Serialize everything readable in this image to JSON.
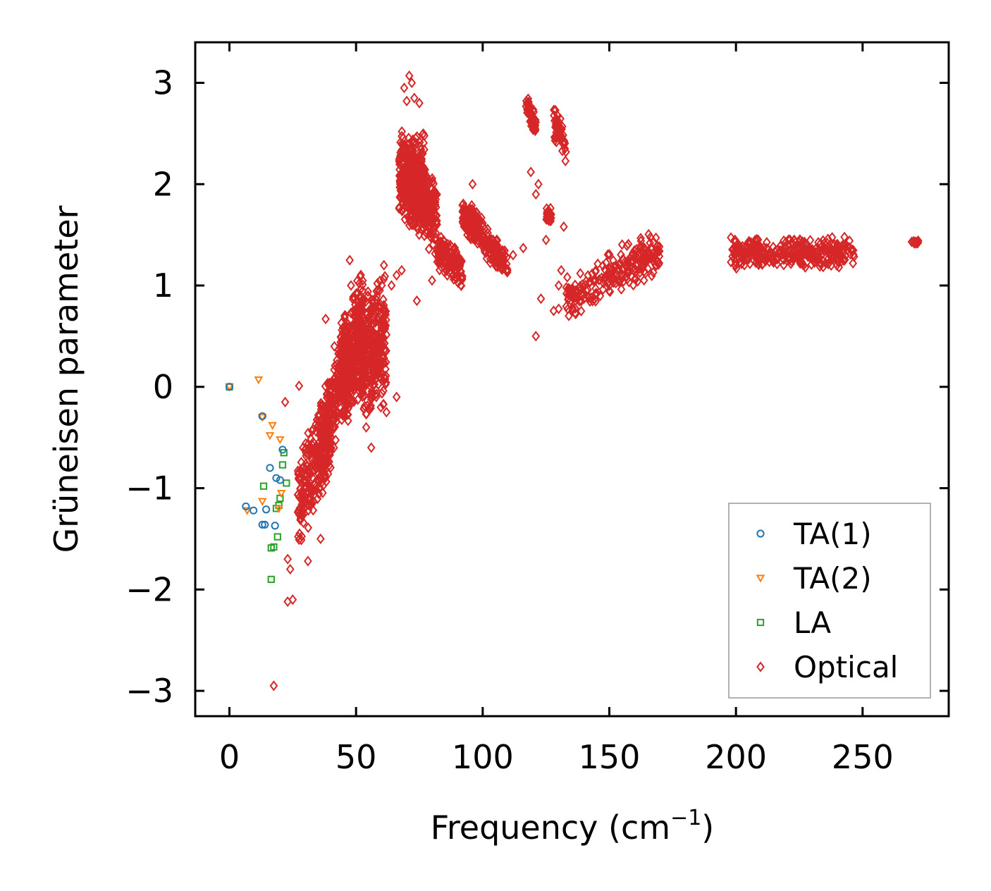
{
  "chart_data": {
    "type": "scatter",
    "title": "",
    "xlabel": "Frequency (cm",
    "xlabel_superscript": "−1",
    "xlabel_suffix": ")",
    "ylabel": "Grüneisen parameter",
    "xlim": [
      -13.5,
      284
    ],
    "ylim": [
      -3.25,
      3.4
    ],
    "x_ticks": [
      0,
      50,
      100,
      150,
      200,
      250
    ],
    "x_tick_labels": [
      "0",
      "50",
      "100",
      "150",
      "200",
      "250"
    ],
    "y_ticks": [
      -3,
      -2,
      -1,
      0,
      1,
      2,
      3
    ],
    "y_tick_labels": [
      "−3",
      "−2",
      "−1",
      "0",
      "1",
      "2",
      "3"
    ],
    "grid": false,
    "legend_position": "lower-right",
    "series": [
      {
        "name": "TA(1)",
        "marker": "circle",
        "color": "#1f77b4",
        "points": [
          [
            0,
            0
          ],
          [
            13,
            -0.29
          ],
          [
            16,
            -0.8
          ],
          [
            18.5,
            -0.9
          ],
          [
            20,
            -0.92
          ],
          [
            21,
            -0.62
          ],
          [
            6.5,
            -1.18
          ],
          [
            9.5,
            -1.22
          ],
          [
            13,
            -1.36
          ],
          [
            14,
            -1.36
          ],
          [
            14.5,
            -1.21
          ],
          [
            18,
            -1.37
          ]
        ]
      },
      {
        "name": "TA(2)",
        "marker": "triangle-down",
        "color": "#ff7f0e",
        "points": [
          [
            0,
            0
          ],
          [
            11.5,
            0.07
          ],
          [
            13,
            -0.3
          ],
          [
            16,
            -0.48
          ],
          [
            17,
            -0.38
          ],
          [
            20,
            -0.52
          ],
          [
            20.5,
            -1.05
          ],
          [
            7,
            -1.22
          ],
          [
            13,
            -1.13
          ],
          [
            19.5,
            -1.2
          ]
        ]
      },
      {
        "name": "LA",
        "marker": "square",
        "color": "#2ca02c",
        "points": [
          [
            0,
            0
          ],
          [
            13.5,
            -0.98
          ],
          [
            18.5,
            -1.2
          ],
          [
            19.5,
            -1.17
          ],
          [
            20,
            -1.1
          ],
          [
            21,
            -0.77
          ],
          [
            22.5,
            -0.95
          ],
          [
            21.5,
            -0.65
          ],
          [
            16.5,
            -1.59
          ],
          [
            17.5,
            -1.58
          ],
          [
            19,
            -1.48
          ],
          [
            16.5,
            -1.9
          ]
        ]
      },
      {
        "name": "Optical",
        "marker": "diamond",
        "color": "#d62728",
        "points": [],
        "clusters": [
          {
            "x": [
              27,
              40
            ],
            "y": [
              -1.25,
              -0.3
            ],
            "n": 260,
            "trend": 0.06
          },
          {
            "x": [
              36,
              46
            ],
            "y": [
              -0.7,
              0.4
            ],
            "n": 220,
            "trend": 0.1
          },
          {
            "x": [
              44,
              53
            ],
            "y": [
              -0.3,
              0.95
            ],
            "n": 380,
            "trend": 0.06
          },
          {
            "x": [
              52,
              62
            ],
            "y": [
              -0.3,
              1.05
            ],
            "n": 320,
            "trend": 0.02
          },
          {
            "x": [
              67,
              77
            ],
            "y": [
              1.55,
              2.55
            ],
            "n": 360,
            "trend": 0.0
          },
          {
            "x": [
              72,
              82
            ],
            "y": [
              1.4,
              2.2
            ],
            "n": 240,
            "trend": -0.03
          },
          {
            "x": [
              82,
              92
            ],
            "y": [
              1.05,
              1.45
            ],
            "n": 130,
            "trend": -0.02
          },
          {
            "x": [
              92,
              100
            ],
            "y": [
              1.4,
              1.8
            ],
            "n": 140,
            "trend": -0.02
          },
          {
            "x": [
              100,
              110
            ],
            "y": [
              1.15,
              1.5
            ],
            "n": 100,
            "trend": -0.03
          },
          {
            "x": [
              117,
              121
            ],
            "y": [
              2.55,
              2.8
            ],
            "n": 50,
            "trend": -0.05
          },
          {
            "x": [
              128,
              133
            ],
            "y": [
              2.3,
              2.7
            ],
            "n": 50,
            "trend": -0.05
          },
          {
            "x": [
              125,
              127
            ],
            "y": [
              1.62,
              1.78
            ],
            "n": 30,
            "trend": 0.0
          },
          {
            "x": [
              133,
              170
            ],
            "y": [
              0.85,
              1.36
            ],
            "n": 230,
            "trend": 0.014
          },
          {
            "x": [
              198,
              247
            ],
            "y": [
              1.15,
              1.5
            ],
            "n": 320,
            "trend": 0.0
          },
          {
            "x": [
              269,
              272
            ],
            "y": [
              1.4,
              1.45
            ],
            "n": 14,
            "trend": 0.0
          }
        ],
        "outliers": [
          [
            17.5,
            -2.95
          ],
          [
            23,
            -2.12
          ],
          [
            25,
            -2.1
          ],
          [
            31,
            -1.72
          ],
          [
            36,
            -1.5
          ],
          [
            23,
            -1.7
          ],
          [
            24,
            -1.8
          ],
          [
            22,
            -0.15
          ],
          [
            27.5,
            0.01
          ],
          [
            38,
            0.67
          ],
          [
            47.5,
            1.25
          ],
          [
            48,
            1.0
          ],
          [
            61,
            1.2
          ],
          [
            66,
            -0.1
          ],
          [
            58,
            -0.1
          ],
          [
            54,
            -0.4
          ],
          [
            56,
            -0.6
          ],
          [
            71,
            3.07
          ],
          [
            72,
            3.0
          ],
          [
            69,
            2.95
          ],
          [
            73,
            2.85
          ],
          [
            70,
            2.82
          ],
          [
            75,
            2.8
          ],
          [
            96,
            2.0
          ],
          [
            112,
            1.3
          ],
          [
            116,
            1.37
          ],
          [
            121,
            1.9
          ],
          [
            122,
            2.0
          ],
          [
            119,
            2.12
          ],
          [
            132,
            1.58
          ],
          [
            125,
            1.45
          ],
          [
            121,
            0.5
          ],
          [
            123,
            0.87
          ],
          [
            128,
            0.75
          ],
          [
            130,
            0.77
          ],
          [
            134,
            0.7
          ],
          [
            131,
            1.15
          ],
          [
            130,
            1.0
          ],
          [
            133,
            0.98
          ],
          [
            66,
            1.1
          ],
          [
            68,
            1.15
          ],
          [
            64,
            1.0
          ],
          [
            74,
            0.85
          ],
          [
            80,
            1.05
          ],
          [
            60,
            0.2
          ],
          [
            62,
            -0.25
          ]
        ]
      }
    ]
  }
}
